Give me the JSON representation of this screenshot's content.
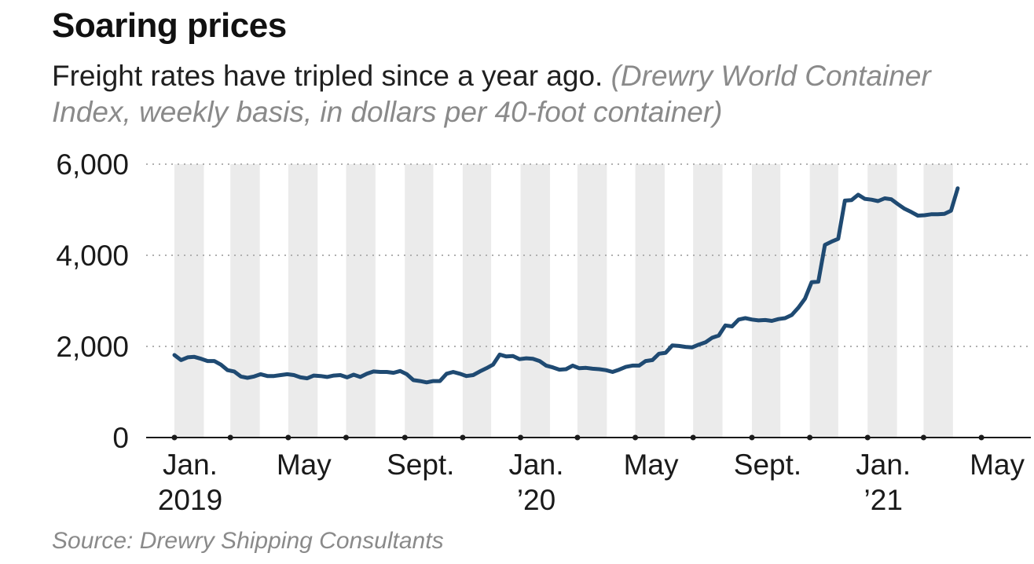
{
  "title": "Soaring prices",
  "subtitle": "Freight rates have tripled since a year ago.",
  "subtitle_note": "(Drewry World Container Index, weekly basis, in dollars per 40-foot container)",
  "source": "Source: Drewry Shipping Consultants",
  "colors": {
    "line": "#1f4a72",
    "band": "#ebebeb",
    "grid": "#b0b0b0",
    "axis": "#1a1a1a"
  },
  "chart_data": {
    "type": "line",
    "title": "Soaring prices",
    "xlabel": "",
    "ylabel": "",
    "ylim": [
      0,
      6000
    ],
    "yticks": [
      0,
      2000,
      4000,
      6000
    ],
    "ytick_labels": [
      "0",
      "2,000",
      "4,000",
      "6,000"
    ],
    "grid": "horizontal dotted",
    "x_range": [
      "2019-01-01",
      "2021-05-20"
    ],
    "month_ticks": [
      "2019-01",
      "2019-02",
      "2019-03",
      "2019-04",
      "2019-05",
      "2019-06",
      "2019-07",
      "2019-08",
      "2019-09",
      "2019-10",
      "2019-11",
      "2019-12",
      "2020-01",
      "2020-02",
      "2020-03",
      "2020-04",
      "2020-05",
      "2020-06",
      "2020-07",
      "2020-08",
      "2020-09",
      "2020-10",
      "2020-11",
      "2020-12",
      "2021-01",
      "2021-02",
      "2021-03",
      "2021-04",
      "2021-05"
    ],
    "xticks": [
      {
        "date": "2019-01",
        "line1": "Jan.",
        "line2": "2019"
      },
      {
        "date": "2019-05",
        "line1": "May",
        "line2": ""
      },
      {
        "date": "2019-09",
        "line1": "Sept.",
        "line2": ""
      },
      {
        "date": "2020-01",
        "line1": "Jan.",
        "line2": "’20"
      },
      {
        "date": "2020-05",
        "line1": "May",
        "line2": ""
      },
      {
        "date": "2020-09",
        "line1": "Sept.",
        "line2": ""
      },
      {
        "date": "2021-01",
        "line1": "Jan.",
        "line2": "’21"
      },
      {
        "date": "2021-05",
        "line1": "May",
        "line2": ""
      }
    ],
    "series": [
      {
        "values": [
          [
            "2019-01-01",
            1810
          ],
          [
            "2019-01-08",
            1700
          ],
          [
            "2019-01-15",
            1760
          ],
          [
            "2019-01-22",
            1770
          ],
          [
            "2019-01-29",
            1730
          ],
          [
            "2019-02-05",
            1680
          ],
          [
            "2019-02-12",
            1680
          ],
          [
            "2019-02-19",
            1600
          ],
          [
            "2019-02-26",
            1480
          ],
          [
            "2019-03-05",
            1450
          ],
          [
            "2019-03-12",
            1340
          ],
          [
            "2019-03-19",
            1310
          ],
          [
            "2019-03-26",
            1340
          ],
          [
            "2019-04-02",
            1390
          ],
          [
            "2019-04-09",
            1350
          ],
          [
            "2019-04-16",
            1350
          ],
          [
            "2019-04-23",
            1370
          ],
          [
            "2019-04-30",
            1390
          ],
          [
            "2019-05-07",
            1370
          ],
          [
            "2019-05-14",
            1320
          ],
          [
            "2019-05-21",
            1300
          ],
          [
            "2019-05-28",
            1360
          ],
          [
            "2019-06-04",
            1350
          ],
          [
            "2019-06-11",
            1330
          ],
          [
            "2019-06-18",
            1360
          ],
          [
            "2019-06-25",
            1370
          ],
          [
            "2019-07-02",
            1320
          ],
          [
            "2019-07-09",
            1380
          ],
          [
            "2019-07-16",
            1330
          ],
          [
            "2019-07-23",
            1400
          ],
          [
            "2019-07-30",
            1450
          ],
          [
            "2019-08-06",
            1440
          ],
          [
            "2019-08-13",
            1440
          ],
          [
            "2019-08-20",
            1420
          ],
          [
            "2019-08-27",
            1460
          ],
          [
            "2019-09-03",
            1390
          ],
          [
            "2019-09-10",
            1260
          ],
          [
            "2019-09-17",
            1240
          ],
          [
            "2019-09-24",
            1210
          ],
          [
            "2019-10-01",
            1240
          ],
          [
            "2019-10-08",
            1240
          ],
          [
            "2019-10-15",
            1400
          ],
          [
            "2019-10-22",
            1440
          ],
          [
            "2019-10-29",
            1400
          ],
          [
            "2019-11-05",
            1350
          ],
          [
            "2019-11-12",
            1370
          ],
          [
            "2019-11-19",
            1450
          ],
          [
            "2019-11-26",
            1520
          ],
          [
            "2019-12-03",
            1600
          ],
          [
            "2019-12-10",
            1820
          ],
          [
            "2019-12-17",
            1780
          ],
          [
            "2019-12-24",
            1790
          ],
          [
            "2019-12-31",
            1720
          ],
          [
            "2020-01-07",
            1740
          ],
          [
            "2020-01-14",
            1730
          ],
          [
            "2020-01-21",
            1680
          ],
          [
            "2020-01-28",
            1580
          ],
          [
            "2020-02-04",
            1540
          ],
          [
            "2020-02-11",
            1490
          ],
          [
            "2020-02-18",
            1500
          ],
          [
            "2020-02-25",
            1580
          ],
          [
            "2020-03-03",
            1520
          ],
          [
            "2020-03-10",
            1530
          ],
          [
            "2020-03-17",
            1510
          ],
          [
            "2020-03-24",
            1500
          ],
          [
            "2020-03-31",
            1480
          ],
          [
            "2020-04-07",
            1440
          ],
          [
            "2020-04-14",
            1490
          ],
          [
            "2020-04-21",
            1550
          ],
          [
            "2020-04-28",
            1580
          ],
          [
            "2020-05-05",
            1580
          ],
          [
            "2020-05-12",
            1680
          ],
          [
            "2020-05-19",
            1700
          ],
          [
            "2020-05-26",
            1840
          ],
          [
            "2020-06-02",
            1860
          ],
          [
            "2020-06-09",
            2020
          ],
          [
            "2020-06-16",
            2010
          ],
          [
            "2020-06-23",
            1990
          ],
          [
            "2020-06-30",
            1980
          ],
          [
            "2020-07-07",
            2040
          ],
          [
            "2020-07-14",
            2090
          ],
          [
            "2020-07-21",
            2190
          ],
          [
            "2020-07-28",
            2240
          ],
          [
            "2020-08-04",
            2460
          ],
          [
            "2020-08-11",
            2440
          ],
          [
            "2020-08-18",
            2590
          ],
          [
            "2020-08-25",
            2620
          ],
          [
            "2020-09-01",
            2590
          ],
          [
            "2020-09-08",
            2570
          ],
          [
            "2020-09-15",
            2580
          ],
          [
            "2020-09-22",
            2560
          ],
          [
            "2020-09-29",
            2600
          ],
          [
            "2020-10-06",
            2620
          ],
          [
            "2020-10-13",
            2690
          ],
          [
            "2020-10-20",
            2850
          ],
          [
            "2020-10-27",
            3050
          ],
          [
            "2020-11-03",
            3410
          ],
          [
            "2020-11-10",
            3420
          ],
          [
            "2020-11-17",
            4230
          ],
          [
            "2020-11-24",
            4300
          ],
          [
            "2020-12-01",
            4360
          ],
          [
            "2020-12-08",
            5200
          ],
          [
            "2020-12-15",
            5210
          ],
          [
            "2020-12-22",
            5330
          ],
          [
            "2020-12-29",
            5240
          ],
          [
            "2021-01-05",
            5220
          ],
          [
            "2021-01-12",
            5190
          ],
          [
            "2021-01-19",
            5250
          ],
          [
            "2021-01-26",
            5230
          ],
          [
            "2021-02-02",
            5120
          ],
          [
            "2021-02-09",
            5020
          ],
          [
            "2021-02-16",
            4950
          ],
          [
            "2021-02-23",
            4870
          ],
          [
            "2021-03-02",
            4880
          ],
          [
            "2021-03-09",
            4900
          ],
          [
            "2021-03-16",
            4900
          ],
          [
            "2021-03-23",
            4910
          ],
          [
            "2021-03-30",
            4980
          ],
          [
            "2021-04-06",
            5470
          ]
        ]
      }
    ]
  }
}
